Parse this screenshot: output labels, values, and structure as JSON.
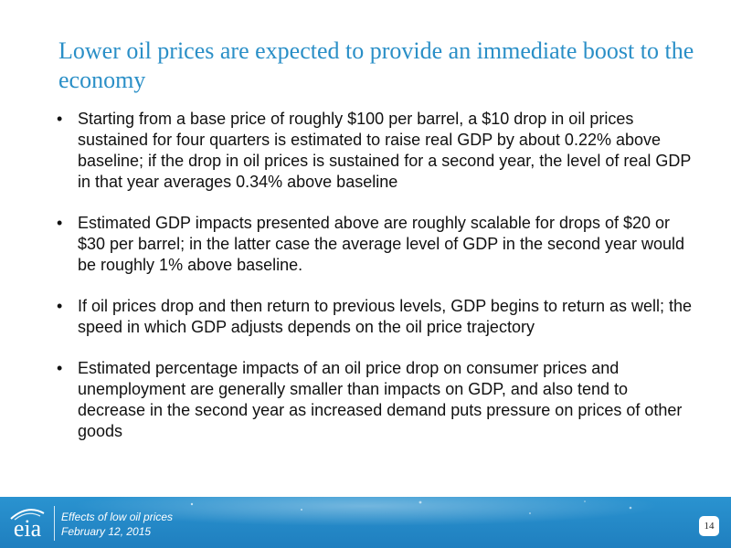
{
  "slide": {
    "title": "Lower oil prices are expected to provide an immediate boost to the economy",
    "bullet_char": "•",
    "bullets": [
      "Starting from a base price of roughly $100 per barrel, a $10 drop in oil prices  sustained for four quarters is estimated to raise real GDP by about 0.22% above baseline; if the drop in oil prices is sustained for a second year, the level of real GDP in that year averages 0.34% above baseline",
      "Estimated GDP impacts presented above are roughly scalable for drops of $20 or $30 per barrel; in the latter case the average level of GDP in the second year would be roughly 1% above baseline.",
      "If oil prices drop and then return to previous levels, GDP begins to return as well; the speed in which GDP adjusts depends on the oil price trajectory",
      "Estimated percentage impacts of an oil price drop on consumer prices and unemployment are generally smaller than impacts on GDP, and also tend to decrease in the second year as increased demand puts pressure on prices of other goods"
    ]
  },
  "footer": {
    "logo_text": "eia",
    "line1": "Effects of low oil prices",
    "line2": "February 12, 2015",
    "page_number": "14"
  },
  "colors": {
    "title": "#2a8fc7",
    "footer_band": "#2a93d0",
    "body_text": "#111111"
  }
}
